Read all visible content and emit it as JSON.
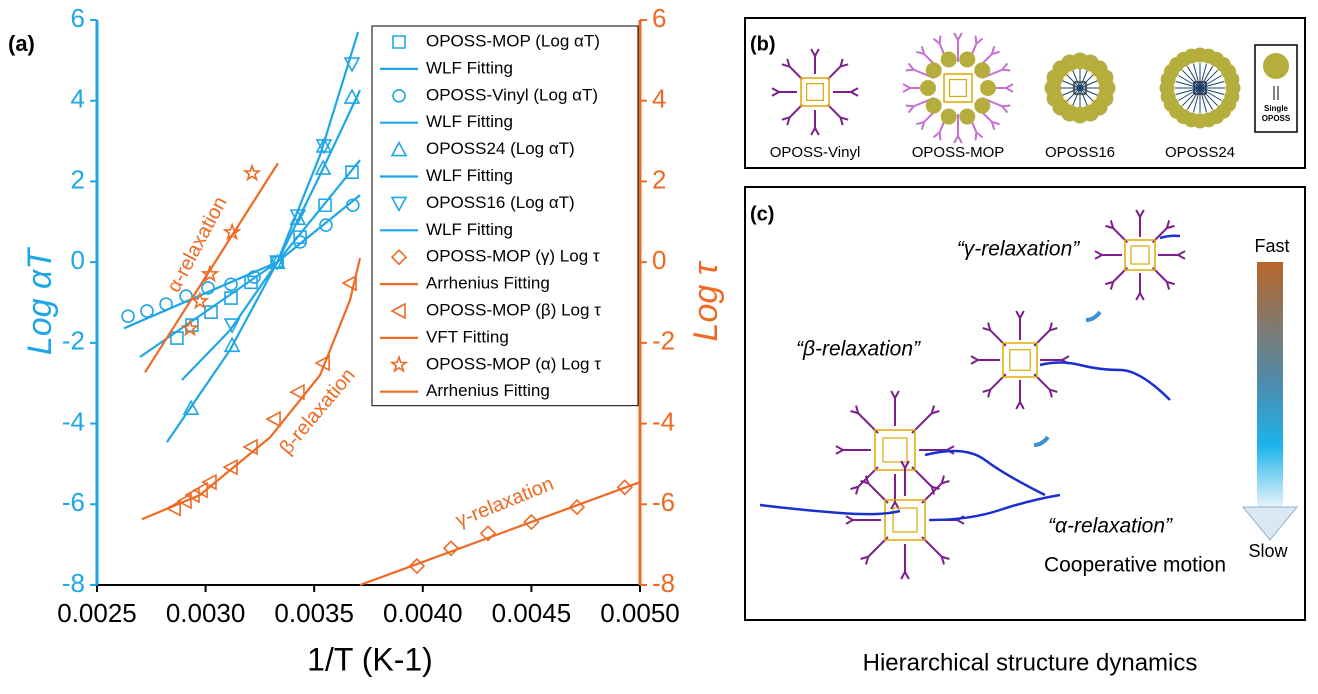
{
  "chart_data": {
    "type": "scatter",
    "panel_label": "(a)",
    "x_label": "1/T (K-1)",
    "y_label": "Log αT",
    "y2_label": "Log τ",
    "xlim": [
      0.0025,
      0.005
    ],
    "xticks": [
      0.0025,
      {
        "value": 0.003,
        "label": "0.0030"
      },
      0.0035,
      {
        "value": 0.004,
        "label": "0.0040"
      },
      0.0045,
      {
        "value": 0.005,
        "label": "0.0050"
      }
    ],
    "ylim": [
      -8,
      6
    ],
    "yticks": [
      -8,
      -6,
      -4,
      -2,
      0,
      2,
      4,
      6
    ],
    "y2lim": [
      -8,
      6
    ],
    "y2ticks": [
      -8,
      -6,
      -4,
      -2,
      0,
      2,
      4,
      6
    ],
    "axis_colors": {
      "y": "#1fa6e6",
      "y2": "#ee6a24"
    },
    "legend": "upper right",
    "series": [
      {
        "name": "OPOSS-MOP (Log αT)",
        "marker": "square",
        "color": "#1fa6e6",
        "axis": "y",
        "x": [
          0.002868,
          0.002937,
          0.003025,
          0.003117,
          0.003209,
          0.003329,
          0.003435,
          0.00355,
          0.003674
        ],
        "values": [
          -1.88,
          -1.56,
          -1.24,
          -0.89,
          -0.5,
          0,
          0.62,
          1.41,
          2.23
        ]
      },
      {
        "name": "WLF Fitting",
        "marker": "line",
        "color": "#1fa6e6",
        "axis": "y",
        "x": [
          0.002698,
          0.00333,
          0.003711
        ],
        "values": [
          -2.35,
          0,
          2.53
        ]
      },
      {
        "name": "OPOSS-Vinyl (Log αT)",
        "marker": "circle",
        "color": "#1fa6e6",
        "axis": "y",
        "x": [
          0.002643,
          0.00273,
          0.002818,
          0.00291,
          0.003011,
          0.003117,
          0.003223,
          0.00333,
          0.003435,
          0.003554,
          0.003678
        ],
        "values": [
          -1.34,
          -1.21,
          -1.04,
          -0.84,
          -0.64,
          -0.55,
          -0.37,
          0,
          0.5,
          0.92,
          1.41
        ]
      },
      {
        "name": "WLF Fitting",
        "marker": "line",
        "color": "#1fa6e6",
        "axis": "y",
        "x": [
          0.002624,
          0.00333,
          0.003711
        ],
        "values": [
          -1.64,
          0,
          1.66
        ]
      },
      {
        "name": "OPOSS24 (Log αT)",
        "marker": "triangle-up",
        "color": "#1fa6e6",
        "axis": "y",
        "x": [
          0.002933,
          0.003122,
          0.00333,
          0.003425,
          0.003541,
          0.003545,
          0.003674
        ],
        "values": [
          -3.62,
          -2.06,
          0,
          1.09,
          2.33,
          2.88,
          4.09
        ]
      },
      {
        "name": "WLF Fitting",
        "marker": "line",
        "color": "#1fa6e6",
        "axis": "y",
        "x": [
          0.002822,
          0.003112,
          0.00333,
          0.003527,
          0.003711
        ],
        "values": [
          -4.46,
          -2.18,
          0,
          2.16,
          4.26
        ]
      },
      {
        "name": "OPOSS16 (Log αT)",
        "marker": "triangle-down",
        "color": "#1fa6e6",
        "axis": "y",
        "x": [
          0.003122,
          0.00333,
          0.003425,
          0.003545,
          0.003674
        ],
        "values": [
          -1.56,
          0,
          1.14,
          2.88,
          4.91
        ]
      },
      {
        "name": "WLF Fitting",
        "marker": "line",
        "color": "#1fa6e6",
        "axis": "y",
        "x": [
          0.002891,
          0.003112,
          0.00333,
          0.003527,
          0.003702
        ],
        "values": [
          -2.92,
          -1.69,
          0,
          2.65,
          5.7
        ]
      },
      {
        "name": "OPOSS-MOP (γ) Log τ",
        "marker": "diamond",
        "color": "#ee6a24",
        "axis": "y2",
        "x": [
          0.003973,
          0.00413,
          0.0043,
          0.0045,
          0.00471,
          0.00493
        ],
        "values": [
          -7.53,
          -7.09,
          -6.72,
          -6.44,
          -6.07,
          -5.58
        ]
      },
      {
        "name": "Arrhenius Fitting",
        "marker": "line",
        "color": "#ee6a24",
        "axis": "y2",
        "x": [
          0.003711,
          0.005
        ],
        "values": [
          -8.0,
          -5.45
        ]
      },
      {
        "name": "OPOSS-MOP (β) Log τ",
        "marker": "triangle-left",
        "color": "#ee6a24",
        "axis": "y2",
        "x": [
          0.002855,
          0.002905,
          0.002942,
          0.002979,
          0.00302,
          0.003117,
          0.003209,
          0.003315,
          0.003425,
          0.003541,
          0.003665
        ],
        "values": [
          -6.1,
          -5.92,
          -5.77,
          -5.65,
          -5.45,
          -5.08,
          -4.58,
          -3.89,
          -3.22,
          -2.5,
          -0.52
        ]
      },
      {
        "name": "VFT Fitting",
        "marker": "line",
        "color": "#ee6a24",
        "axis": "y2",
        "x": [
          0.002707,
          0.002974,
          0.003297,
          0.003527,
          0.003665,
          0.003711
        ],
        "values": [
          -6.37,
          -5.77,
          -4.34,
          -2.8,
          -0.94,
          0.1
        ]
      },
      {
        "name": "OPOSS-MOP (α) Log τ",
        "marker": "star",
        "color": "#ee6a24",
        "axis": "y2",
        "x": [
          0.002928,
          0.002974,
          0.00302,
          0.003122,
          0.003214
        ],
        "values": [
          -1.64,
          -0.97,
          -0.3,
          0.74,
          2.2
        ]
      },
      {
        "name": "Arrhenius Fitting",
        "marker": "line",
        "color": "#ee6a24",
        "axis": "y2",
        "x": [
          0.002721,
          0.003333
        ],
        "values": [
          -2.73,
          2.45
        ]
      }
    ],
    "annotations": [
      "α-relaxation",
      "β-relaxation",
      "γ-relaxation"
    ]
  },
  "panel_b": {
    "label": "(b)",
    "items": [
      "OPOSS-Vinyl",
      "OPOSS-MOP",
      "OPOSS16",
      "OPOSS24"
    ],
    "key": "Single OPOSS"
  },
  "panel_c": {
    "label": "(c)",
    "gamma": "“γ-relaxation”",
    "beta": "“β-relaxation”",
    "alpha": "“α-relaxation”",
    "note": "Cooperative motion",
    "fast": "Fast",
    "slow": "Slow"
  },
  "caption": "Hierarchical structure dynamics"
}
